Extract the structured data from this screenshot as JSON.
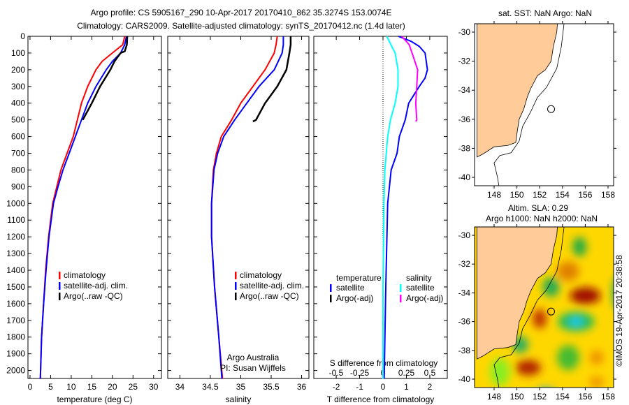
{
  "title_line1": "Argo profile: CS 5905167_290 10-Apr-2017 20170410_862 35.3274S 153.0074E",
  "title_line2": "Climatology: CARS2009. Satellite-adjusted climatology: synTS_20170412.nc (1.4d later)",
  "colors": {
    "clim": "#ff0000",
    "sat": "#0000ff",
    "argo": "#000000",
    "ssat": "#00ffff",
    "sargo": "#ff00ff",
    "land": "#ffcc99"
  },
  "chart_data": [
    {
      "type": "line",
      "xlabel": "temperature (deg C)",
      "xlim": [
        -0.5,
        31.9
      ],
      "ylim": [
        0,
        2050
      ],
      "xticks": [
        0,
        5,
        10,
        15,
        20,
        25,
        30
      ],
      "yticks": [
        0,
        100,
        200,
        300,
        400,
        500,
        600,
        700,
        800,
        900,
        1000,
        1100,
        1200,
        1300,
        1400,
        1500,
        1600,
        1700,
        1800,
        1900,
        2000
      ],
      "legend": [
        "climatology",
        "satellite-adj. clim.",
        "Argo(..raw -QC)"
      ],
      "series": [
        {
          "name": "climatology",
          "color": "clim",
          "depth": [
            0,
            50,
            100,
            150,
            200,
            300,
            400,
            500,
            600,
            700,
            800,
            900,
            1000,
            1200,
            1400,
            1600,
            1800,
            2050
          ],
          "values": [
            23,
            22.5,
            20,
            17.5,
            16,
            14,
            12.5,
            11.5,
            10.5,
            9,
            7.5,
            6.5,
            5.5,
            4.5,
            3.8,
            3.3,
            2.8,
            2.5
          ]
        },
        {
          "name": "satellite-adj. clim.",
          "color": "sat",
          "depth": [
            0,
            50,
            100,
            150,
            200,
            300,
            400,
            500,
            600,
            700,
            800,
            900,
            1000,
            1200,
            1400,
            1600,
            1800,
            2050
          ],
          "values": [
            23.4,
            23,
            22,
            20,
            18.5,
            16,
            14,
            12.5,
            11,
            9.5,
            8,
            6.8,
            5.7,
            4.6,
            3.9,
            3.3,
            2.8,
            2.5
          ]
        },
        {
          "name": "Argo(..raw -QC)",
          "color": "argo",
          "depth": [
            0,
            50,
            90,
            100,
            150,
            200,
            300,
            400,
            500
          ],
          "values": [
            23.6,
            23.5,
            23,
            22,
            20.5,
            19.5,
            17,
            15,
            12.8
          ]
        }
      ]
    },
    {
      "type": "line",
      "xlabel": "salinity",
      "xlim": [
        33.8,
        36.12
      ],
      "ylim": [
        0,
        2050
      ],
      "xticks": [
        34,
        34.5,
        35,
        35.5,
        36
      ],
      "legend": [
        "climatology",
        "satellite-adj. clim.",
        "Argo(..raw -QC)"
      ],
      "annotation": [
        "Argo Australia",
        "PI: Susan Wijffels"
      ],
      "series": [
        {
          "name": "climatology",
          "color": "clim",
          "depth": [
            0,
            50,
            100,
            200,
            300,
            400,
            500,
            600,
            700,
            800,
            1000,
            1200,
            1500,
            1800,
            2050
          ],
          "values": [
            35.6,
            35.58,
            35.55,
            35.4,
            35.2,
            35.0,
            34.85,
            34.68,
            34.6,
            34.55,
            34.52,
            34.52,
            34.57,
            34.64,
            34.7
          ]
        },
        {
          "name": "satellite-adj. clim.",
          "color": "sat",
          "depth": [
            0,
            50,
            100,
            200,
            300,
            400,
            500,
            600,
            700,
            800,
            1000,
            1200,
            1500,
            1800,
            2050
          ],
          "values": [
            35.7,
            35.7,
            35.68,
            35.55,
            35.3,
            35.1,
            34.9,
            34.72,
            34.62,
            34.56,
            34.52,
            34.52,
            34.57,
            34.64,
            34.69
          ]
        },
        {
          "name": "Argo(..raw -QC)",
          "color": "argo",
          "depth": [
            0,
            50,
            100,
            200,
            300,
            400,
            500,
            510
          ],
          "values": [
            35.82,
            35.82,
            35.8,
            35.75,
            35.6,
            35.4,
            35.25,
            35.2
          ]
        }
      ]
    },
    {
      "type": "line",
      "xlabel": "T difference from climatology",
      "x2label": "S difference from climatology",
      "xlim": [
        -2.96,
        2.75
      ],
      "xticks": [
        "-2",
        "-1",
        "0",
        "1",
        "2"
      ],
      "xtickvals": [
        -2,
        -1,
        0,
        1,
        2
      ],
      "x2ticks": [
        "-0.5",
        "-0.25",
        "0",
        "0.25",
        "0.5"
      ],
      "x2tickvals": [
        -0.5,
        -0.25,
        0,
        0.25,
        0.5
      ],
      "legend": {
        "temperature": "temperature",
        "salinity": "salinity",
        "tsat": "satellite",
        "targo": "Argo(-adj)",
        "ssat": "satellite",
        "sargo": "Argo(-adj)"
      },
      "series": [
        {
          "name": "T satellite",
          "color": "sat",
          "unit": "T",
          "depth": [
            0,
            30,
            60,
            100,
            200,
            250,
            300,
            400,
            500,
            600,
            700,
            800,
            1000,
            1500,
            2050
          ],
          "values": [
            0.66,
            1.2,
            1.55,
            1.8,
            1.9,
            1.8,
            1.55,
            1.1,
            0.95,
            0.7,
            0.6,
            0.35,
            0.2,
            0.12,
            0.05
          ]
        },
        {
          "name": "S satellite",
          "color": "ssat",
          "unit": "S",
          "depth": [
            0,
            100,
            200,
            300,
            400,
            500,
            600,
            800,
            1000,
            1500,
            2050
          ],
          "values": [
            0.04,
            0.13,
            0.16,
            0.16,
            0.13,
            0.08,
            0.05,
            0.02,
            0.01,
            0.0,
            0.0
          ]
        },
        {
          "name": "S Argo(-adj)",
          "color": "sargo",
          "unit": "S",
          "depth": [
            0,
            50,
            100,
            200,
            300,
            400,
            500,
            510
          ],
          "values": [
            0.2,
            0.28,
            0.31,
            0.37,
            0.36,
            0.35,
            0.36,
            0.35
          ]
        }
      ]
    }
  ],
  "map1": {
    "title": "sat. SST: NaN Argo: NaN",
    "lat_ticks": [
      "-30",
      "-32",
      "-34",
      "-36",
      "-38",
      "-40"
    ],
    "lon_ticks": [
      "148",
      "150",
      "152",
      "154",
      "156",
      "158"
    ]
  },
  "map2": {
    "title1": "Altim. SLA: 0.29",
    "title2": "Argo h1000: NaN h2000: NaN",
    "lat_ticks": [
      "-30",
      "-32",
      "-34",
      "-36",
      "-38",
      "-40"
    ],
    "lon_ticks": [
      "148",
      "150",
      "152",
      "154",
      "156",
      "158"
    ]
  },
  "profile_location": {
    "lon": 153.0,
    "lat": -35.3
  },
  "credit": "©IMOS 19-Apr-2017 20:38:58"
}
